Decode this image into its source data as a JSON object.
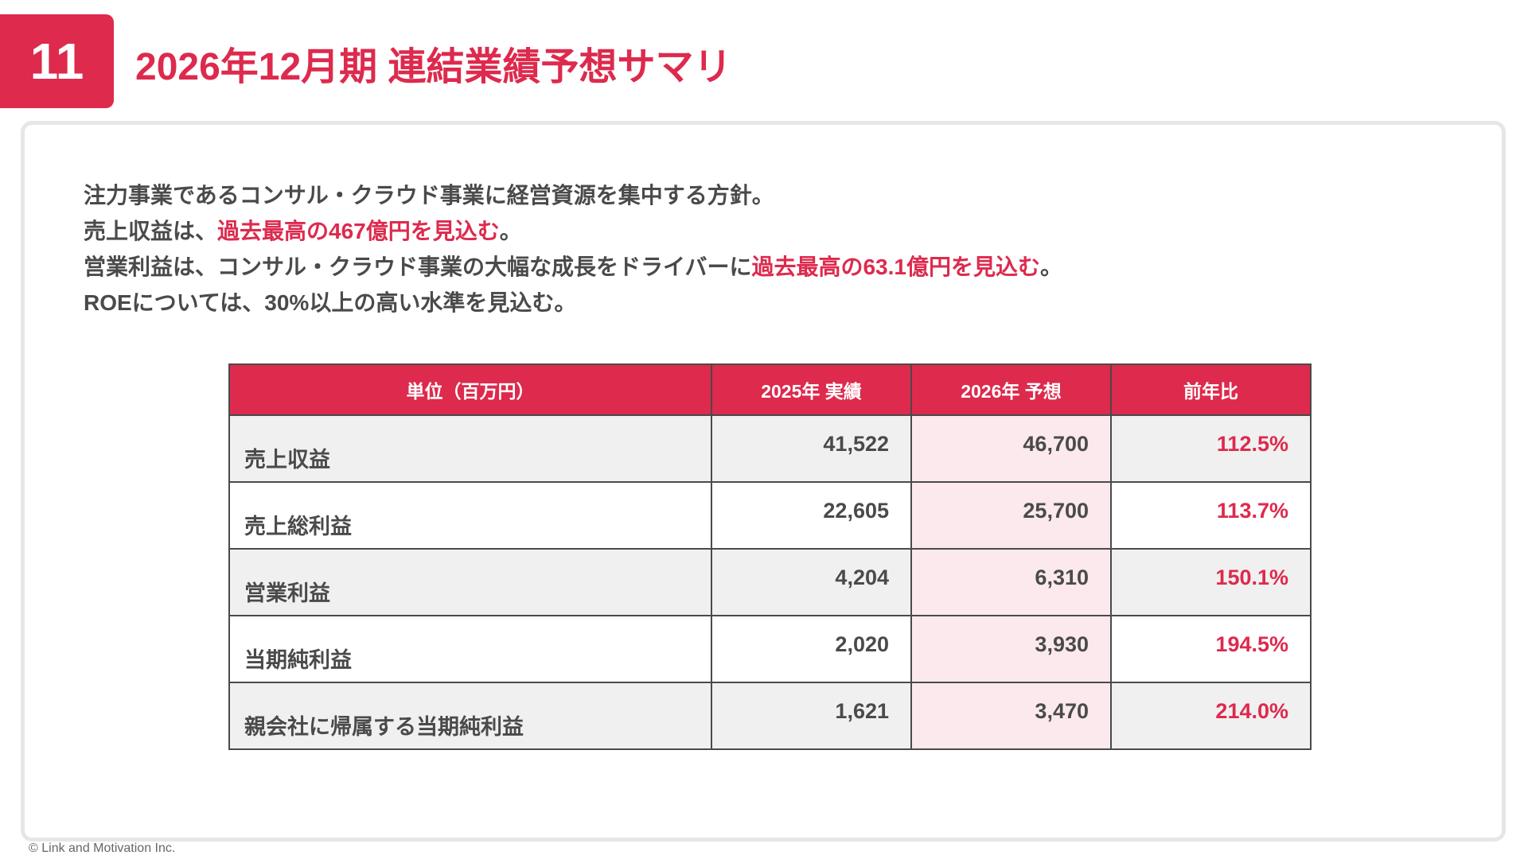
{
  "header": {
    "page_number": "11",
    "title": "2026年12月期 連結業績予想サマリ"
  },
  "summary": {
    "line1": "注力事業であるコンサル・クラウド事業に経営資源を集中する方針。",
    "line2_prefix": "売上収益は、",
    "line2_highlight": "過去最高の467億円を見込む",
    "line2_suffix": "。",
    "line3_prefix": "営業利益は、コンサル・クラウド事業の大幅な成長をドライバーに",
    "line3_highlight": "過去最高の63.1億円を見込む",
    "line3_suffix": "。",
    "line4": "ROEについては、30%以上の高い水準を見込む。"
  },
  "table": {
    "headers": [
      "単位（百万円）",
      "2025年 実績",
      "2026年 予想",
      "前年比"
    ],
    "rows": [
      {
        "label": "売上収益",
        "actual_2025": "41,522",
        "forecast_2026": "46,700",
        "yoy": "112.5%"
      },
      {
        "label": "売上総利益",
        "actual_2025": "22,605",
        "forecast_2026": "25,700",
        "yoy": "113.7%"
      },
      {
        "label": "営業利益",
        "actual_2025": "4,204",
        "forecast_2026": "6,310",
        "yoy": "150.1%"
      },
      {
        "label": "当期純利益",
        "actual_2025": "2,020",
        "forecast_2026": "3,930",
        "yoy": "194.5%"
      },
      {
        "label": "親会社に帰属する当期純利益",
        "actual_2025": "1,621",
        "forecast_2026": "3,470",
        "yoy": "214.0%"
      }
    ]
  },
  "footer": {
    "copyright": "© Link and Motivation Inc."
  },
  "colors": {
    "accent": "#dd2a4d",
    "text": "#4a4a4a",
    "forecast_cell_bg": "#fbe9ed",
    "shaded_row_bg": "#f0f0f0"
  }
}
